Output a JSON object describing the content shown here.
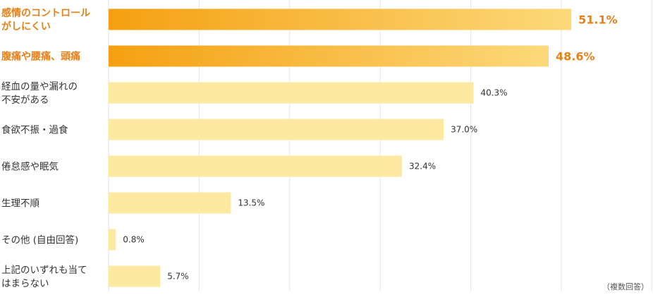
{
  "chart_data": {
    "type": "bar",
    "orientation": "horizontal",
    "categories": [
      "感情のコントロール\nがしにくい",
      "腹痛や腰痛、頭痛",
      "経血の量や漏れの\n不安がある",
      "食欲不振・過食",
      "倦怠感や眠気",
      "生理不順",
      "その他 (自由回答)",
      "上記のいずれも当て\nはまらない"
    ],
    "values": [
      51.1,
      48.6,
      40.3,
      37.0,
      32.4,
      13.5,
      0.8,
      5.7
    ],
    "value_labels": [
      "51.1%",
      "48.6%",
      "40.3%",
      "37.0%",
      "32.4%",
      "13.5%",
      "0.8%",
      "5.7%"
    ],
    "highlighted": [
      true,
      true,
      false,
      false,
      false,
      false,
      false,
      false
    ],
    "xlim": [
      0,
      60
    ],
    "grid": true,
    "note": "（複数回答）"
  },
  "colors": {
    "highlight_start": "#f5a011",
    "highlight_end": "#fcd97a",
    "bar": "#fde9a0",
    "highlight_text": "#e8801a",
    "text": "#333333",
    "grid": "#e6e6e6"
  }
}
